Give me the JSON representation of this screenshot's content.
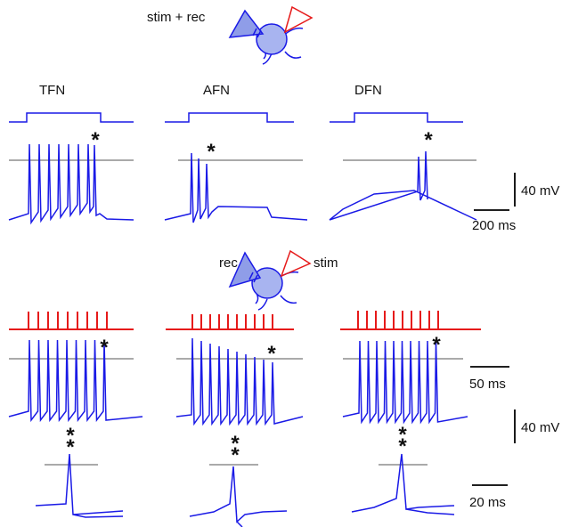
{
  "header": {
    "label": "stim + rec"
  },
  "columns": [
    "TFN",
    "AFN",
    "DFN"
  ],
  "lower": {
    "rec_label": "rec",
    "stim_label": "stim"
  },
  "scale_bars": {
    "top_voltage": "40 mV",
    "top_time": "200 ms",
    "train_time": "50 ms",
    "bottom_voltage": "40 mV",
    "spike_time": "20 ms"
  },
  "marker": "*"
}
